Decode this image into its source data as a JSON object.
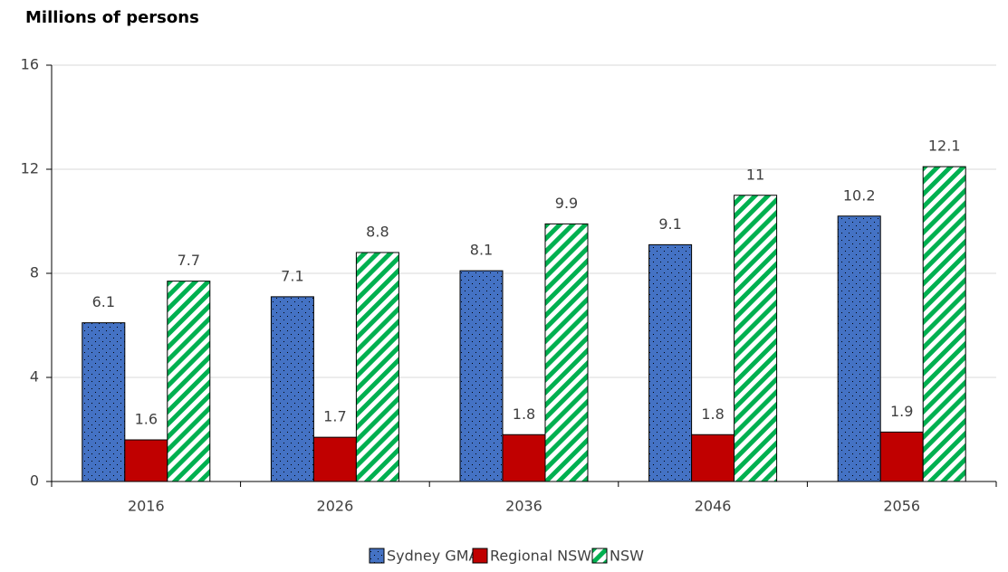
{
  "chart_data": {
    "type": "bar",
    "title": "Millions of persons",
    "categories": [
      "2016",
      "2026",
      "2036",
      "2046",
      "2056"
    ],
    "series": [
      {
        "name": "Sydney GMA",
        "color": "#4472c4",
        "pattern": "dots",
        "values": [
          6.1,
          7.1,
          8.1,
          9.1,
          10.2
        ]
      },
      {
        "name": "Regional NSW",
        "color": "#c00000",
        "pattern": "solid",
        "values": [
          1.6,
          1.7,
          1.8,
          1.8,
          1.9
        ]
      },
      {
        "name": "NSW",
        "color": "#00b050",
        "pattern": "stripes",
        "values": [
          7.7,
          8.8,
          9.9,
          11,
          12.1
        ]
      }
    ],
    "ylim": [
      0,
      16
    ],
    "yticks": [
      0,
      4,
      8,
      12,
      16
    ],
    "grid": true,
    "legend": "bottom"
  }
}
